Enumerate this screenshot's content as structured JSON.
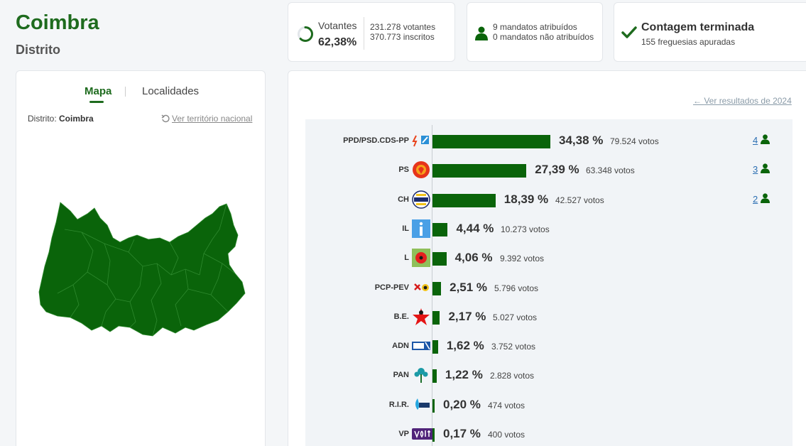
{
  "header": {
    "title": "Coimbra",
    "subtitle": "Distrito"
  },
  "votantes": {
    "label": "Votantes",
    "pct": "62,38%",
    "fraction": 0.6238,
    "votantes": "231.278 votantes",
    "inscritos": "370.773 inscritos"
  },
  "mandatos": {
    "atribuidos": "9 mandatos atribuídos",
    "nao_atribuidos": "0 mandatos não atribuídos"
  },
  "contagem": {
    "title": "Contagem terminada",
    "sub": "155 freguesias apuradas"
  },
  "map_panel": {
    "tabs": {
      "mapa": "Mapa",
      "localidades": "Localidades"
    },
    "distrito_label": "Distrito:",
    "distrito_value": "Coimbra",
    "ver_territorio": "Ver território nacional"
  },
  "results": {
    "ver_2024": "Ver resultados de 2024",
    "parties": [
      {
        "name": "PPD/PSD.CDS-PP",
        "pct": "34,38 %",
        "value": 34.38,
        "votes": "79.524 votos",
        "seats": "4",
        "logo": "ad-logo"
      },
      {
        "name": "PS",
        "pct": "27,39 %",
        "value": 27.39,
        "votes": "63.348 votos",
        "seats": "3",
        "logo": "ps-logo"
      },
      {
        "name": "CH",
        "pct": "18,39 %",
        "value": 18.39,
        "votes": "42.527 votos",
        "seats": "2",
        "logo": "chega-logo"
      },
      {
        "name": "IL",
        "pct": "4,44 %",
        "value": 4.44,
        "votes": "10.273 votos",
        "seats": "",
        "logo": "il-logo"
      },
      {
        "name": "L",
        "pct": "4,06 %",
        "value": 4.06,
        "votes": "9.392 votos",
        "seats": "",
        "logo": "livre-logo"
      },
      {
        "name": "PCP-PEV",
        "pct": "2,51 %",
        "value": 2.51,
        "votes": "5.796 votos",
        "seats": "",
        "logo": "cdu-logo"
      },
      {
        "name": "B.E.",
        "pct": "2,17 %",
        "value": 2.17,
        "votes": "5.027 votos",
        "seats": "",
        "logo": "be-logo"
      },
      {
        "name": "ADN",
        "pct": "1,62 %",
        "value": 1.62,
        "votes": "3.752 votos",
        "seats": "",
        "logo": "adn-logo"
      },
      {
        "name": "PAN",
        "pct": "1,22 %",
        "value": 1.22,
        "votes": "2.828 votos",
        "seats": "",
        "logo": "pan-logo"
      },
      {
        "name": "R.I.R.",
        "pct": "0,20 %",
        "value": 0.2,
        "votes": "474 votos",
        "seats": "",
        "logo": "rir-logo"
      },
      {
        "name": "VP",
        "pct": "0,17 %",
        "value": 0.17,
        "votes": "400 votos",
        "seats": "",
        "logo": "volt-logo"
      }
    ]
  },
  "colors": {
    "brand": "#1e6b1e",
    "bar": "#0a640a",
    "link": "#2c6fb3"
  }
}
